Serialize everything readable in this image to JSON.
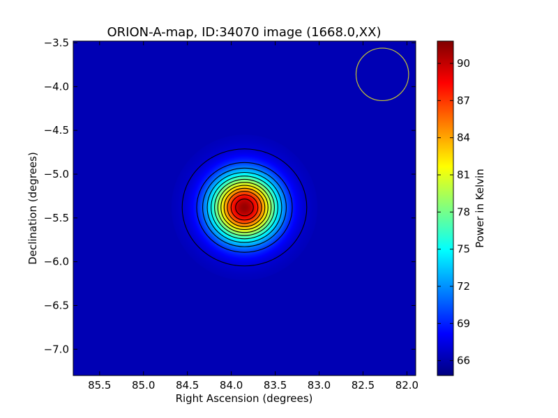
{
  "chart_data": {
    "type": "heatmap",
    "title": "ORION-A-map, ID:34070 image (1668.0,XX)",
    "xlabel": "Right Ascension (degrees)",
    "ylabel": "Declination (degrees)",
    "colorbar_label": "Power in Kelvin",
    "xlim": [
      85.8,
      81.9
    ],
    "ylim": [
      -7.3,
      -3.48
    ],
    "x_ticks": [
      85.5,
      85.0,
      84.5,
      84.0,
      83.5,
      83.0,
      82.5,
      82.0
    ],
    "x_tick_labels": [
      "85.5",
      "85.0",
      "84.5",
      "84.0",
      "83.5",
      "83.0",
      "82.5",
      "82.0"
    ],
    "y_ticks": [
      -3.5,
      -4.0,
      -4.5,
      -5.0,
      -5.5,
      -6.0,
      -6.5,
      -7.0
    ],
    "y_tick_labels": [
      "−3.5",
      "−4.0",
      "−4.5",
      "−5.0",
      "−5.5",
      "−6.0",
      "−6.5",
      "−7.0"
    ],
    "colorbar_range": [
      64.8,
      91.8
    ],
    "colorbar_ticks": [
      66,
      69,
      72,
      75,
      78,
      81,
      84,
      87,
      90
    ],
    "colorbar_tick_labels": [
      "66",
      "69",
      "72",
      "75",
      "78",
      "81",
      "84",
      "87",
      "90"
    ],
    "colormap": "jet",
    "background_value": 66.2,
    "source": {
      "ra": 83.85,
      "dec": -5.38,
      "peak_value": 91.2,
      "sigma_ra_deg": 0.26,
      "sigma_dec_deg": 0.26
    },
    "contour_levels": [
      67.0,
      69.5,
      71.5,
      73.5,
      75.5,
      77.5,
      79.5,
      81.5,
      83.5,
      85.5,
      87.5,
      89.5
    ],
    "contour_color": "#000000",
    "beam_marker": {
      "ra": 82.28,
      "dec": -3.86,
      "radius_deg": 0.3,
      "color": "#c8c832"
    }
  }
}
